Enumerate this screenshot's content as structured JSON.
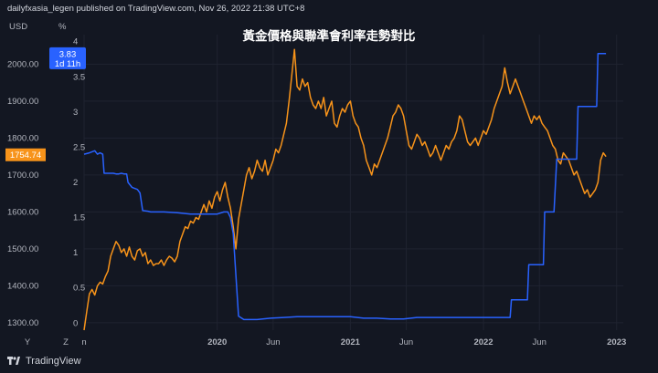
{
  "header": {
    "publisher": "dailyfxasia_legen published on TradingView.com, Nov 26, 2022 21:38 UTC+8"
  },
  "footer": {
    "brand": "TradingView"
  },
  "chart_data": {
    "type": "line",
    "title": "黃金價格與聯準會利率走勢對比",
    "left_axis": {
      "unit": "USD",
      "range": [
        1280,
        2080
      ],
      "ticks": [
        "1300.00",
        "1400.00",
        "1500.00",
        "1600.00",
        "1700.00",
        "1800.00",
        "1900.00",
        "2000.00"
      ],
      "price_label": "1754.74",
      "price_label_color": "#f7931a"
    },
    "right_axis": {
      "unit": "%",
      "range": [
        -0.1,
        4.1
      ],
      "ticks": [
        "0",
        "0.5",
        "1",
        "1.5",
        "2",
        "2.5",
        "3",
        "3.5",
        "4"
      ],
      "price_label": "3.83",
      "price_label_sub": "1d 11h",
      "price_label_color": "#2962ff"
    },
    "x_axis": {
      "range": [
        2019.0,
        2023.05
      ],
      "ticks": [
        {
          "label": "n",
          "x": 2019.0
        },
        {
          "label": "2020",
          "x": 2020.0
        },
        {
          "label": "Jun",
          "x": 2020.42
        },
        {
          "label": "2021",
          "x": 2021.0
        },
        {
          "label": "Jun",
          "x": 2021.42
        },
        {
          "label": "2022",
          "x": 2022.0
        },
        {
          "label": "Jun",
          "x": 2022.42
        },
        {
          "label": "2023",
          "x": 2023.0
        }
      ],
      "scale_buttons": [
        "Y",
        "Z"
      ]
    },
    "series": [
      {
        "color": "#f7931a",
        "axis": "left",
        "points": [
          [
            2019.0,
            1280
          ],
          [
            2019.02,
            1330
          ],
          [
            2019.04,
            1378
          ],
          [
            2019.06,
            1390
          ],
          [
            2019.08,
            1375
          ],
          [
            2019.1,
            1400
          ],
          [
            2019.12,
            1410
          ],
          [
            2019.14,
            1405
          ],
          [
            2019.16,
            1425
          ],
          [
            2019.18,
            1440
          ],
          [
            2019.2,
            1480
          ],
          [
            2019.22,
            1500
          ],
          [
            2019.24,
            1520
          ],
          [
            2019.26,
            1510
          ],
          [
            2019.28,
            1490
          ],
          [
            2019.3,
            1500
          ],
          [
            2019.32,
            1480
          ],
          [
            2019.34,
            1505
          ],
          [
            2019.36,
            1480
          ],
          [
            2019.38,
            1470
          ],
          [
            2019.4,
            1495
          ],
          [
            2019.42,
            1500
          ],
          [
            2019.44,
            1480
          ],
          [
            2019.46,
            1490
          ],
          [
            2019.48,
            1460
          ],
          [
            2019.5,
            1470
          ],
          [
            2019.52,
            1455
          ],
          [
            2019.54,
            1460
          ],
          [
            2019.56,
            1460
          ],
          [
            2019.58,
            1470
          ],
          [
            2019.6,
            1455
          ],
          [
            2019.62,
            1470
          ],
          [
            2019.64,
            1480
          ],
          [
            2019.66,
            1475
          ],
          [
            2019.68,
            1465
          ],
          [
            2019.7,
            1480
          ],
          [
            2019.72,
            1520
          ],
          [
            2019.74,
            1540
          ],
          [
            2019.76,
            1560
          ],
          [
            2019.78,
            1555
          ],
          [
            2019.8,
            1575
          ],
          [
            2019.82,
            1570
          ],
          [
            2019.84,
            1585
          ],
          [
            2019.86,
            1580
          ],
          [
            2019.88,
            1600
          ],
          [
            2019.9,
            1620
          ],
          [
            2019.92,
            1600
          ],
          [
            2019.94,
            1630
          ],
          [
            2019.96,
            1610
          ],
          [
            2019.98,
            1640
          ],
          [
            2020.0,
            1655
          ],
          [
            2020.02,
            1630
          ],
          [
            2020.04,
            1660
          ],
          [
            2020.06,
            1680
          ],
          [
            2020.08,
            1640
          ],
          [
            2020.1,
            1610
          ],
          [
            2020.12,
            1560
          ],
          [
            2020.14,
            1500
          ],
          [
            2020.16,
            1580
          ],
          [
            2020.18,
            1620
          ],
          [
            2020.2,
            1660
          ],
          [
            2020.22,
            1700
          ],
          [
            2020.24,
            1720
          ],
          [
            2020.26,
            1690
          ],
          [
            2020.28,
            1710
          ],
          [
            2020.3,
            1740
          ],
          [
            2020.32,
            1720
          ],
          [
            2020.34,
            1710
          ],
          [
            2020.36,
            1740
          ],
          [
            2020.38,
            1700
          ],
          [
            2020.4,
            1720
          ],
          [
            2020.42,
            1740
          ],
          [
            2020.44,
            1770
          ],
          [
            2020.46,
            1760
          ],
          [
            2020.48,
            1780
          ],
          [
            2020.5,
            1810
          ],
          [
            2020.52,
            1840
          ],
          [
            2020.54,
            1900
          ],
          [
            2020.56,
            1970
          ],
          [
            2020.58,
            2040
          ],
          [
            2020.6,
            1940
          ],
          [
            2020.62,
            1930
          ],
          [
            2020.64,
            1960
          ],
          [
            2020.66,
            1940
          ],
          [
            2020.68,
            1950
          ],
          [
            2020.7,
            1910
          ],
          [
            2020.72,
            1890
          ],
          [
            2020.74,
            1880
          ],
          [
            2020.76,
            1900
          ],
          [
            2020.78,
            1880
          ],
          [
            2020.8,
            1910
          ],
          [
            2020.82,
            1860
          ],
          [
            2020.84,
            1880
          ],
          [
            2020.86,
            1900
          ],
          [
            2020.88,
            1840
          ],
          [
            2020.9,
            1830
          ],
          [
            2020.92,
            1860
          ],
          [
            2020.94,
            1880
          ],
          [
            2020.96,
            1870
          ],
          [
            2020.98,
            1890
          ],
          [
            2021.0,
            1900
          ],
          [
            2021.02,
            1860
          ],
          [
            2021.04,
            1840
          ],
          [
            2021.06,
            1830
          ],
          [
            2021.08,
            1800
          ],
          [
            2021.1,
            1780
          ],
          [
            2021.12,
            1740
          ],
          [
            2021.14,
            1720
          ],
          [
            2021.16,
            1700
          ],
          [
            2021.18,
            1730
          ],
          [
            2021.2,
            1720
          ],
          [
            2021.22,
            1740
          ],
          [
            2021.24,
            1760
          ],
          [
            2021.26,
            1780
          ],
          [
            2021.28,
            1800
          ],
          [
            2021.3,
            1830
          ],
          [
            2021.32,
            1860
          ],
          [
            2021.34,
            1870
          ],
          [
            2021.36,
            1890
          ],
          [
            2021.38,
            1880
          ],
          [
            2021.4,
            1860
          ],
          [
            2021.42,
            1820
          ],
          [
            2021.44,
            1780
          ],
          [
            2021.46,
            1770
          ],
          [
            2021.48,
            1790
          ],
          [
            2021.5,
            1810
          ],
          [
            2021.52,
            1800
          ],
          [
            2021.54,
            1780
          ],
          [
            2021.56,
            1790
          ],
          [
            2021.58,
            1770
          ],
          [
            2021.6,
            1750
          ],
          [
            2021.62,
            1760
          ],
          [
            2021.64,
            1780
          ],
          [
            2021.66,
            1760
          ],
          [
            2021.68,
            1740
          ],
          [
            2021.7,
            1760
          ],
          [
            2021.72,
            1780
          ],
          [
            2021.74,
            1770
          ],
          [
            2021.76,
            1790
          ],
          [
            2021.78,
            1800
          ],
          [
            2021.8,
            1820
          ],
          [
            2021.82,
            1860
          ],
          [
            2021.84,
            1850
          ],
          [
            2021.86,
            1820
          ],
          [
            2021.88,
            1790
          ],
          [
            2021.9,
            1780
          ],
          [
            2021.92,
            1790
          ],
          [
            2021.94,
            1800
          ],
          [
            2021.96,
            1780
          ],
          [
            2021.98,
            1800
          ],
          [
            2022.0,
            1820
          ],
          [
            2022.02,
            1810
          ],
          [
            2022.04,
            1830
          ],
          [
            2022.06,
            1850
          ],
          [
            2022.08,
            1880
          ],
          [
            2022.1,
            1900
          ],
          [
            2022.12,
            1920
          ],
          [
            2022.14,
            1940
          ],
          [
            2022.16,
            1990
          ],
          [
            2022.18,
            1950
          ],
          [
            2022.2,
            1920
          ],
          [
            2022.22,
            1940
          ],
          [
            2022.24,
            1960
          ],
          [
            2022.26,
            1940
          ],
          [
            2022.28,
            1920
          ],
          [
            2022.3,
            1900
          ],
          [
            2022.32,
            1880
          ],
          [
            2022.34,
            1860
          ],
          [
            2022.36,
            1840
          ],
          [
            2022.38,
            1860
          ],
          [
            2022.4,
            1850
          ],
          [
            2022.42,
            1860
          ],
          [
            2022.44,
            1840
          ],
          [
            2022.46,
            1830
          ],
          [
            2022.48,
            1820
          ],
          [
            2022.5,
            1800
          ],
          [
            2022.52,
            1780
          ],
          [
            2022.54,
            1770
          ],
          [
            2022.56,
            1740
          ],
          [
            2022.58,
            1730
          ],
          [
            2022.6,
            1760
          ],
          [
            2022.62,
            1750
          ],
          [
            2022.64,
            1740
          ],
          [
            2022.66,
            1720
          ],
          [
            2022.68,
            1700
          ],
          [
            2022.7,
            1710
          ],
          [
            2022.72,
            1690
          ],
          [
            2022.74,
            1670
          ],
          [
            2022.76,
            1650
          ],
          [
            2022.78,
            1660
          ],
          [
            2022.8,
            1640
          ],
          [
            2022.82,
            1650
          ],
          [
            2022.84,
            1660
          ],
          [
            2022.86,
            1680
          ],
          [
            2022.88,
            1740
          ],
          [
            2022.9,
            1760
          ],
          [
            2022.92,
            1750
          ]
        ]
      },
      {
        "color": "#2962ff",
        "axis": "right",
        "points": [
          [
            2019.0,
            2.4
          ],
          [
            2019.04,
            2.42
          ],
          [
            2019.08,
            2.45
          ],
          [
            2019.1,
            2.4
          ],
          [
            2019.12,
            2.42
          ],
          [
            2019.14,
            2.4
          ],
          [
            2019.15,
            2.13
          ],
          [
            2019.22,
            2.13
          ],
          [
            2019.24,
            2.12
          ],
          [
            2019.26,
            2.12
          ],
          [
            2019.28,
            2.13
          ],
          [
            2019.3,
            2.12
          ],
          [
            2019.32,
            2.12
          ],
          [
            2019.33,
            2.0
          ],
          [
            2019.36,
            1.93
          ],
          [
            2019.4,
            1.9
          ],
          [
            2019.42,
            1.85
          ],
          [
            2019.44,
            1.6
          ],
          [
            2019.48,
            1.59
          ],
          [
            2019.5,
            1.58
          ],
          [
            2019.6,
            1.58
          ],
          [
            2019.7,
            1.57
          ],
          [
            2019.8,
            1.55
          ],
          [
            2019.9,
            1.55
          ],
          [
            2020.0,
            1.55
          ],
          [
            2020.05,
            1.58
          ],
          [
            2020.08,
            1.58
          ],
          [
            2020.1,
            1.5
          ],
          [
            2020.12,
            1.27
          ],
          [
            2020.16,
            0.1
          ],
          [
            2020.2,
            0.05
          ],
          [
            2020.3,
            0.05
          ],
          [
            2020.4,
            0.07
          ],
          [
            2020.5,
            0.08
          ],
          [
            2020.6,
            0.09
          ],
          [
            2020.7,
            0.09
          ],
          [
            2020.8,
            0.09
          ],
          [
            2020.9,
            0.09
          ],
          [
            2021.0,
            0.09
          ],
          [
            2021.1,
            0.07
          ],
          [
            2021.2,
            0.07
          ],
          [
            2021.3,
            0.06
          ],
          [
            2021.4,
            0.06
          ],
          [
            2021.5,
            0.08
          ],
          [
            2021.6,
            0.08
          ],
          [
            2021.7,
            0.08
          ],
          [
            2021.8,
            0.08
          ],
          [
            2021.9,
            0.08
          ],
          [
            2022.0,
            0.08
          ],
          [
            2022.1,
            0.08
          ],
          [
            2022.2,
            0.08
          ],
          [
            2022.21,
            0.33
          ],
          [
            2022.3,
            0.33
          ],
          [
            2022.33,
            0.33
          ],
          [
            2022.34,
            0.83
          ],
          [
            2022.45,
            0.83
          ],
          [
            2022.46,
            1.58
          ],
          [
            2022.53,
            1.58
          ],
          [
            2022.55,
            2.33
          ],
          [
            2022.62,
            2.33
          ],
          [
            2022.7,
            2.33
          ],
          [
            2022.71,
            3.08
          ],
          [
            2022.8,
            3.08
          ],
          [
            2022.85,
            3.08
          ],
          [
            2022.86,
            3.83
          ],
          [
            2022.92,
            3.83
          ]
        ]
      }
    ]
  }
}
